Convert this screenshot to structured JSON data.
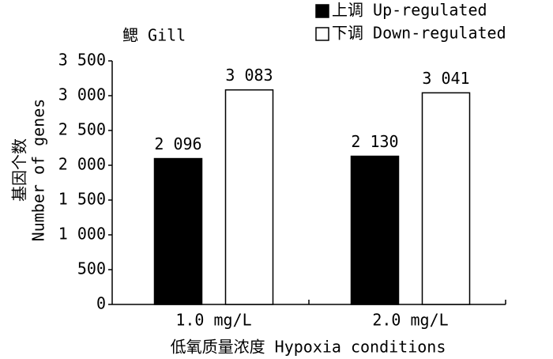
{
  "chart_data": {
    "type": "bar",
    "title": "鳃 Gill",
    "ylabel": [
      "基因个数",
      "Number of genes"
    ],
    "xlabel": "低氧质量浓度 Hypoxia conditions",
    "categories": [
      "1.0 mg/L",
      "2.0 mg/L"
    ],
    "series": [
      {
        "name": "上调 Up-regulated",
        "color": "#000000",
        "values": [
          2096,
          2130
        ],
        "value_labels": [
          "2 096",
          "2 130"
        ]
      },
      {
        "name": "下调 Down-regulated",
        "color": "#ffffff",
        "values": [
          3083,
          3041
        ],
        "value_labels": [
          "3 083",
          "3 041"
        ]
      }
    ],
    "ylim": [
      0,
      3500
    ],
    "yticks": [
      0,
      500,
      {
        "value": 1000,
        "label": "1 000"
      },
      {
        "value": 1500,
        "label": "1 500"
      },
      {
        "value": 2000,
        "label": "2 000"
      },
      {
        "value": 2500,
        "label": "2 500"
      },
      {
        "value": 3000,
        "label": "3 000"
      },
      {
        "value": 3500,
        "label": "3 500"
      }
    ],
    "legend": "top-right",
    "grid": false
  }
}
